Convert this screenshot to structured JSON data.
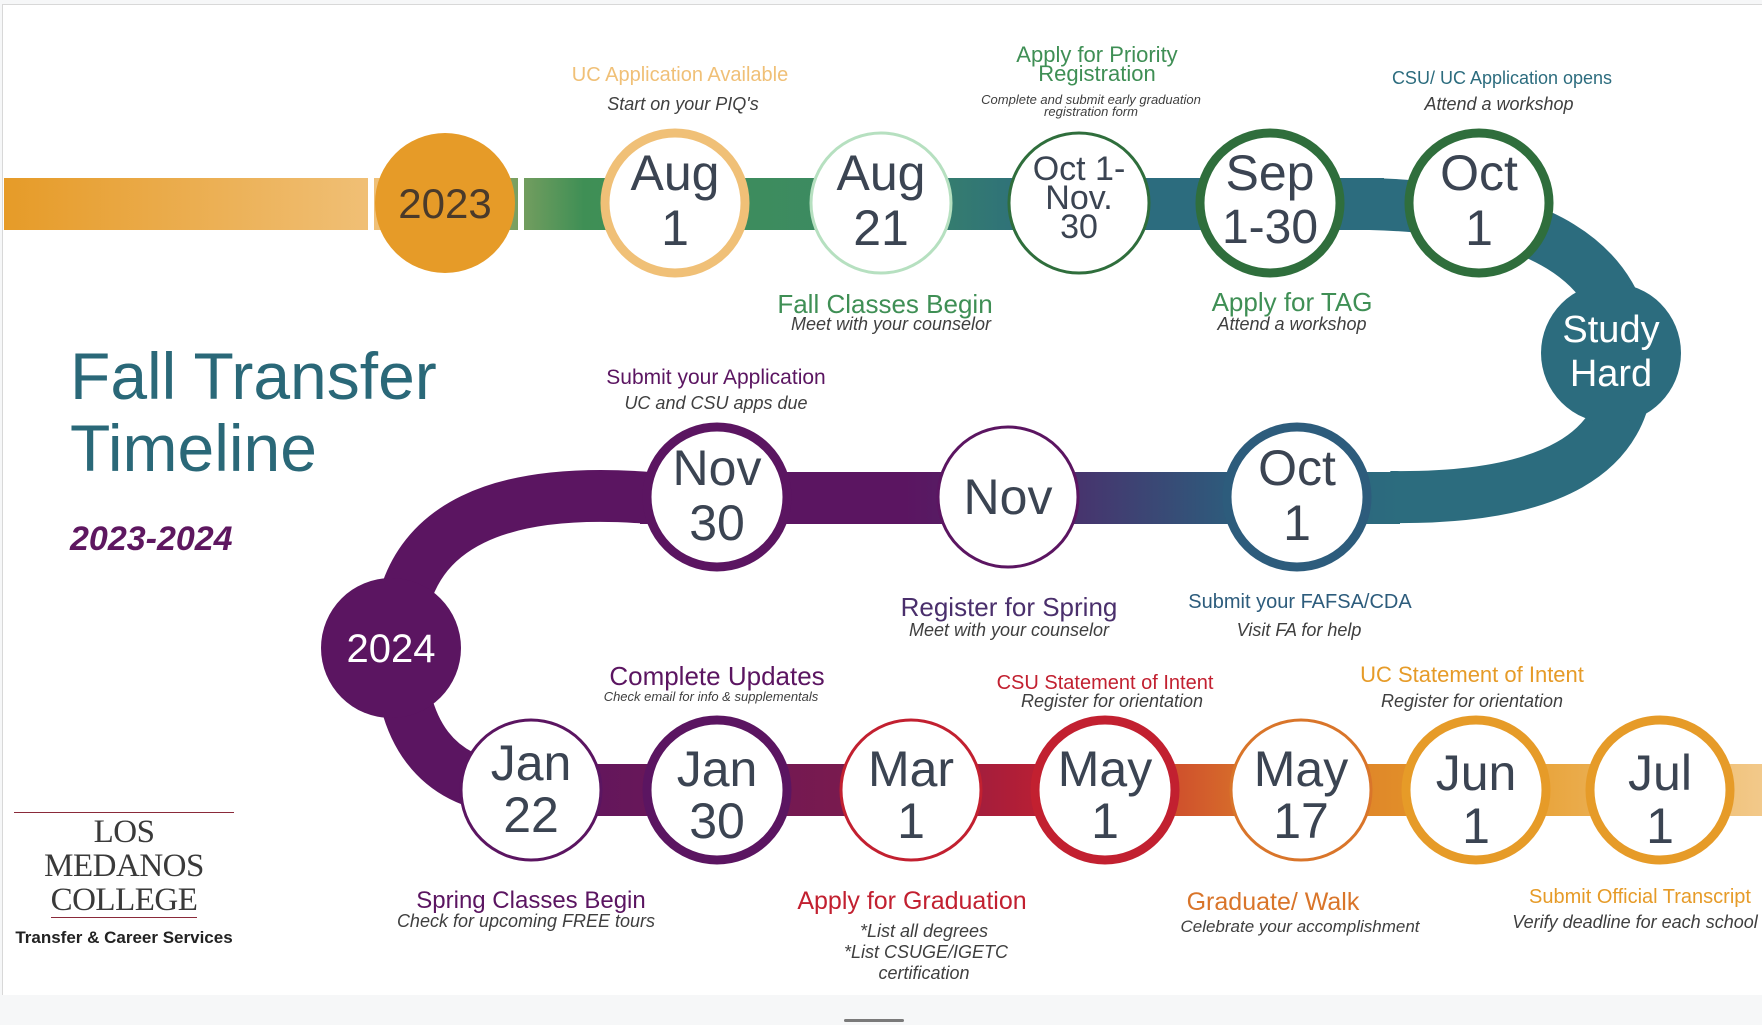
{
  "title_line1": "Fall Transfer",
  "title_line2": "Timeline",
  "years": "2023-2024",
  "logo": {
    "line1": "LOS MEDANOS",
    "line2": "COLLEGE",
    "dept": "Transfer & Career Services"
  },
  "colors": {
    "orange": "#e69b28",
    "light_orange": "#f0c077",
    "green": "#3f8f55",
    "dark_green": "#2f6e3c",
    "teal": "#2c6c7e",
    "navy": "#2d5c7c",
    "purple": "#5b1561",
    "dark_red": "#9b1c3c",
    "red": "#c22030",
    "burnt_orange": "#d9752a"
  },
  "year_markers": {
    "y2023": "2023",
    "y2024": "2024",
    "study_line1": "Study",
    "study_line2": "Hard"
  },
  "milestones": [
    {
      "l1": "Aug",
      "l2": "1",
      "title": "UC Application Available",
      "note": "Start on your PIQ's"
    },
    {
      "l1": "Aug",
      "l2": "21",
      "title": "Fall Classes Begin",
      "note": "Meet with your counselor"
    },
    {
      "l1": "Oct 1-",
      "l2": "Nov.",
      "l3": "30",
      "title1": "Apply for Priority",
      "title2": "Registration",
      "note1": "Complete and submit early  graduation",
      "note2": "registration form"
    },
    {
      "l1": "Sep",
      "l2": "1-30",
      "title": "Apply for TAG",
      "note": "Attend a workshop"
    },
    {
      "l1": "Oct",
      "l2": "1",
      "title": "CSU/ UC Application opens",
      "note": "Attend a workshop"
    },
    {
      "l1": "Oct",
      "l2": "1",
      "title": "Submit your FAFSA/CDA",
      "note": "Visit FA for help"
    },
    {
      "l1": "Nov",
      "title": "Register for Spring",
      "note": "Meet with your counselor"
    },
    {
      "l1": "Nov",
      "l2": "30",
      "title": "Submit your Application",
      "note": "UC and CSU apps due"
    },
    {
      "l1": "Jan",
      "l2": "22",
      "title": "Spring Classes Begin",
      "note": "Check for upcoming FREE tours"
    },
    {
      "l1": "Jan",
      "l2": "30",
      "title": "Complete Updates",
      "note": "Check email for info & supplementals"
    },
    {
      "l1": "Mar",
      "l2": "1",
      "title": "Apply for Graduation",
      "note1": "*List all degrees",
      "note2": "*List CSUGE/IGETC",
      "note3": "certification"
    },
    {
      "l1": "May",
      "l2": "1",
      "title": "CSU Statement of Intent",
      "note": "Register for orientation"
    },
    {
      "l1": "May",
      "l2": "17",
      "title": "Graduate/ Walk",
      "note": "Celebrate your accomplishment"
    },
    {
      "l1": "Jun",
      "l2": "1",
      "title": "UC Statement of Intent",
      "note": "Register for orientation"
    },
    {
      "l1": "Jul",
      "l2": "1",
      "title": "Submit Official Transcript",
      "note": "Verify deadline for each school"
    }
  ]
}
